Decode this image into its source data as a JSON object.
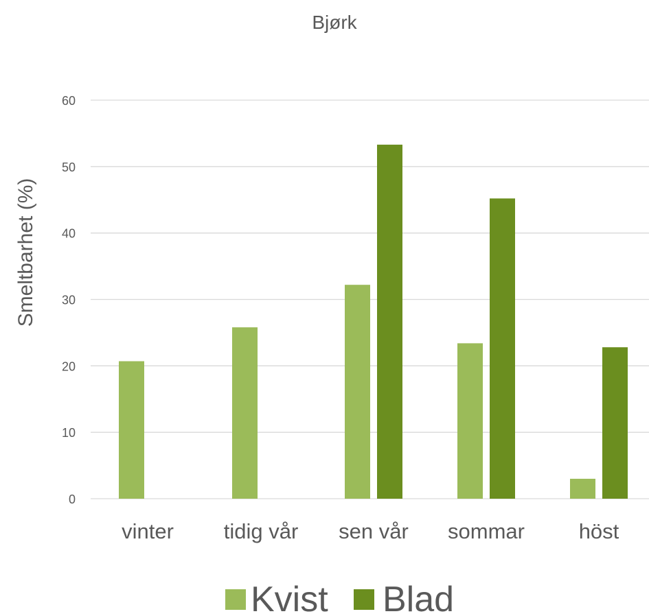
{
  "chart_data": {
    "type": "bar",
    "title": "Bjørk",
    "xlabel": "",
    "ylabel": "Smeltbarhet (%)",
    "ylim": [
      0,
      60
    ],
    "yticks": [
      0,
      10,
      20,
      30,
      40,
      50,
      60
    ],
    "grid": true,
    "legend_position": "bottom",
    "categories": [
      "vinter",
      "tidig vår",
      "sen vår",
      "sommar",
      "höst"
    ],
    "series": [
      {
        "name": "Kvist",
        "color": "#9bbb59",
        "values": [
          20.7,
          25.8,
          32.2,
          23.4,
          3.0
        ]
      },
      {
        "name": "Blad",
        "color": "#6b8e1f",
        "values": [
          null,
          null,
          53.3,
          45.2,
          22.8
        ]
      }
    ]
  }
}
